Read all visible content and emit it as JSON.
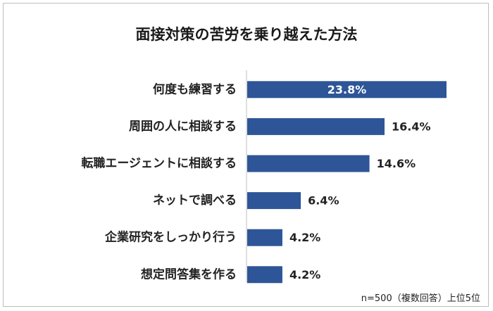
{
  "chart_data": {
    "type": "bar",
    "orientation": "horizontal",
    "title": "面接対策の苦労を乗り越えた方法",
    "categories": [
      "何度も練習する",
      "周囲の人に相談する",
      "転職エージェントに相談する",
      "ネットで調べる",
      "企業研究をしっかり行う",
      "想定問答集を作る"
    ],
    "values": [
      23.8,
      16.4,
      14.6,
      6.4,
      4.2,
      4.2
    ],
    "value_labels": [
      "23.8%",
      "16.4%",
      "14.6%",
      "6.4%",
      "4.2%",
      "4.2%"
    ],
    "unit": "%",
    "xlim": [
      0,
      24
    ],
    "bar_color": "#2e5597",
    "note": "n=500（複数回答）上位5位"
  }
}
